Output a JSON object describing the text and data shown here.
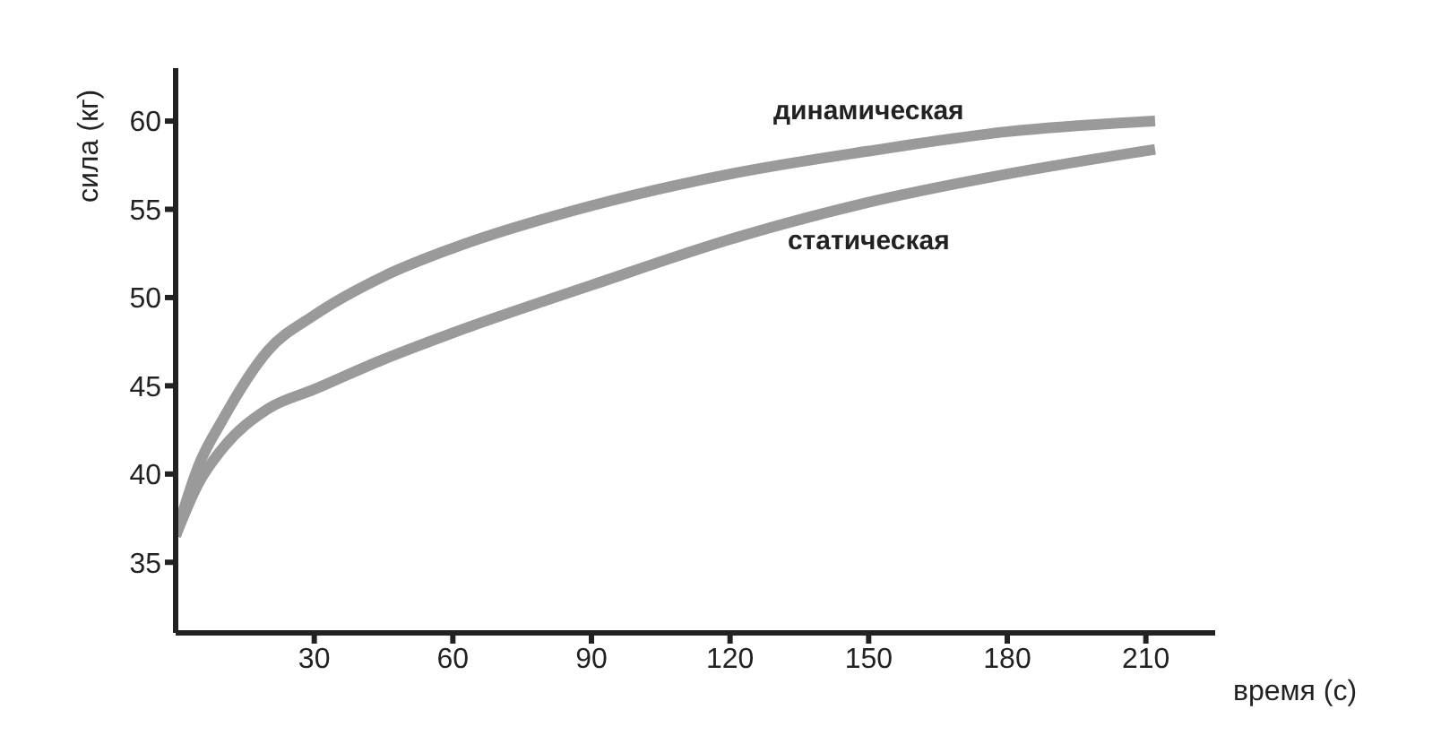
{
  "chart_data": {
    "type": "line",
    "xlabel": "время (с)",
    "ylabel": "сила (кг)",
    "x": [
      0,
      5,
      10,
      20,
      30,
      45,
      60,
      90,
      120,
      150,
      180,
      212
    ],
    "series": [
      {
        "name": "динамическая",
        "color": "#9a9a9a",
        "values": [
          36.5,
          40.5,
          43,
          47,
          49,
          51.2,
          52.8,
          55.2,
          57,
          58.3,
          59.4,
          60
        ]
      },
      {
        "name": "статическая",
        "color": "#9a9a9a",
        "values": [
          36.5,
          39.5,
          41.4,
          43.7,
          44.8,
          46.5,
          48,
          50.7,
          53.3,
          55.4,
          57,
          58.4
        ]
      }
    ],
    "xlim": [
      0,
      225
    ],
    "xticks": [
      30,
      60,
      90,
      120,
      150,
      180,
      210
    ],
    "ylim": [
      31,
      63
    ],
    "yticks": [
      35,
      40,
      45,
      50,
      55,
      60
    ],
    "grid": false,
    "legend": false,
    "marker": "none",
    "line_style": "solid"
  }
}
